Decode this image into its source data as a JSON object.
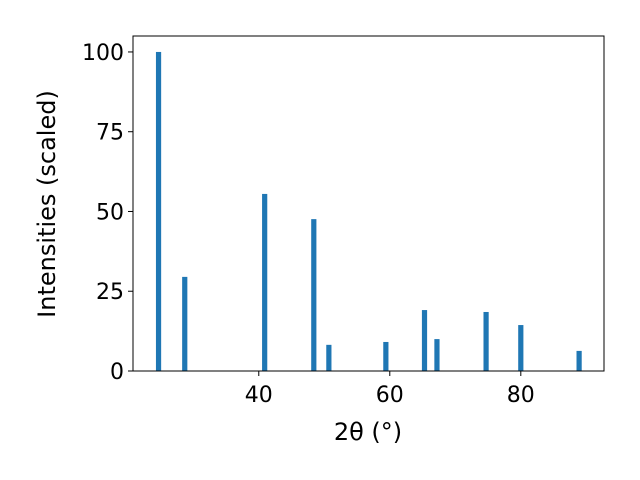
{
  "chart_data": {
    "type": "bar",
    "x_label": "2θ (°)",
    "y_label": "Intensities (scaled)",
    "x": [
      24.7,
      28.7,
      40.9,
      48.4,
      50.7,
      59.4,
      65.3,
      67.2,
      74.7,
      80.0,
      88.9
    ],
    "values": [
      100,
      29.5,
      55.5,
      47.6,
      8.2,
      9.1,
      19.1,
      10.0,
      18.5,
      14.4,
      6.3
    ],
    "color": "#1f77b4",
    "xlim": [
      20.8,
      92.7
    ],
    "ylim": [
      0,
      105
    ],
    "xticks": [
      40,
      60,
      80
    ],
    "yticks": [
      0,
      25,
      50,
      75,
      100
    ]
  }
}
